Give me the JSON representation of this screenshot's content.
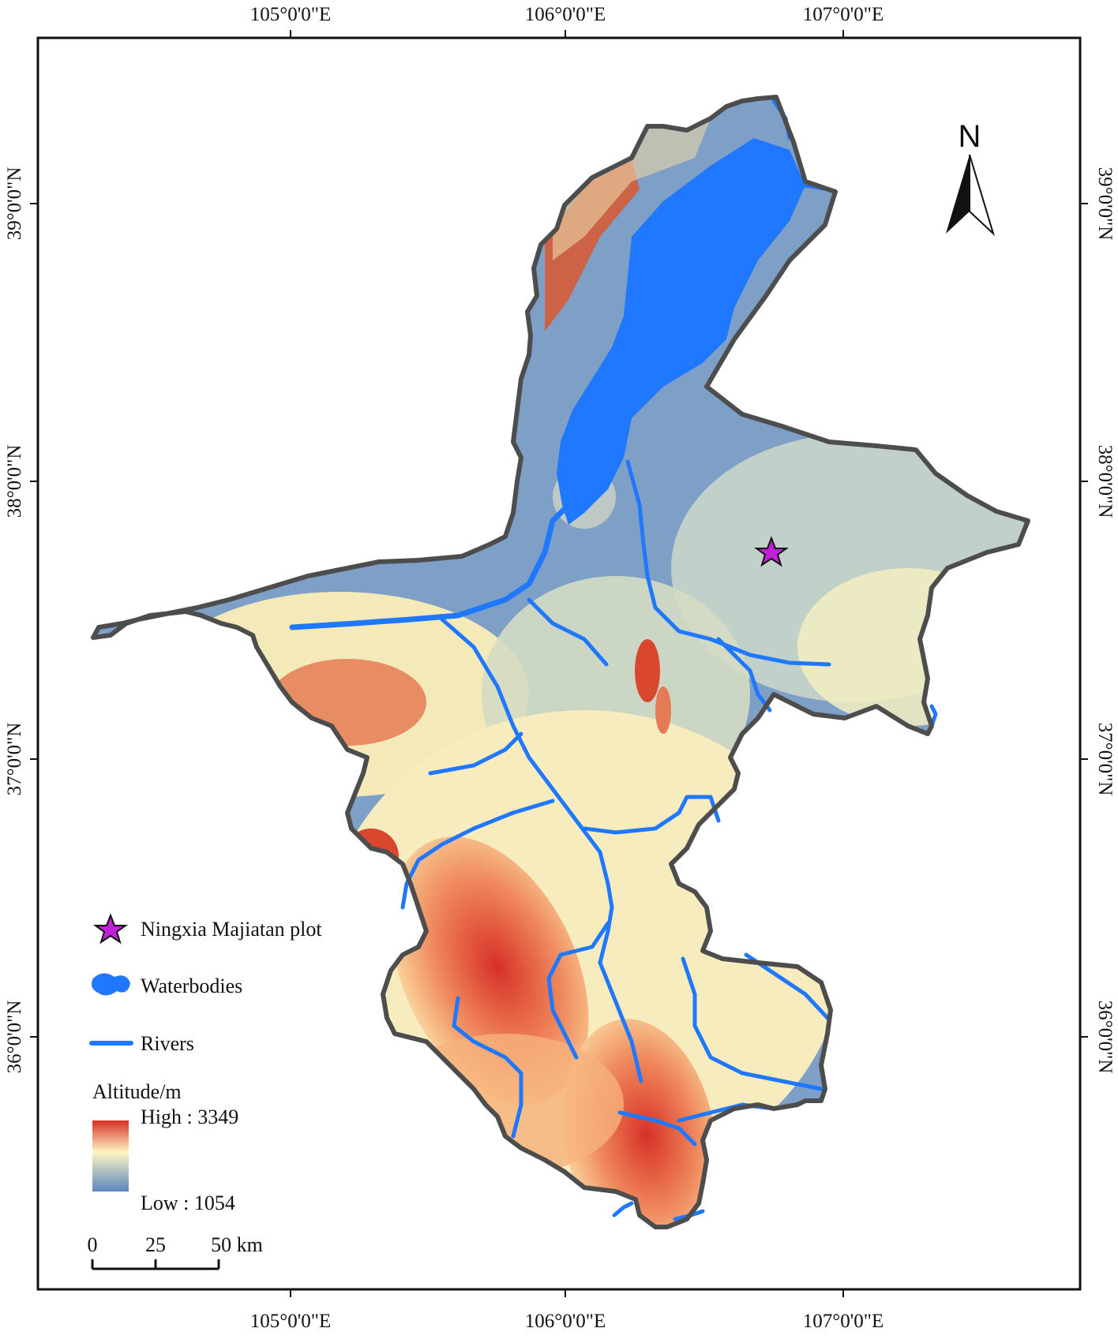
{
  "map": {
    "top_lon_labels": [
      "105°0'0\"E",
      "106°0'0\"E",
      "107°0'0\"E"
    ],
    "bottom_lon_labels": [
      "105°0'0\"E",
      "106°0'0\"E",
      "107°0'0\"E"
    ],
    "left_lat_labels": [
      "39°0'0\"N",
      "38°0'0\"N",
      "37°0'0\"N",
      "36°0'0\"N"
    ],
    "right_lat_labels": [
      "39°0'0\"N",
      "38°0'0\"N",
      "37°0'0\"N",
      "36°0'0\"N"
    ],
    "north_arrow_label": "N",
    "marker_symbol": "★"
  },
  "legend": {
    "plot_label": "Ningxia Majiatan plot",
    "waterbodies_label": "Waterbodies",
    "rivers_label": "Rivers",
    "altitude_title": "Altitude/m",
    "high_label": "High : 3349",
    "low_label": "Low : 1054"
  },
  "scale_bar": {
    "tick_labels": [
      "0",
      "25",
      "50 km"
    ]
  },
  "colors": {
    "high": "#d73027",
    "mid": "#fdf6c3",
    "low": "#5b86bd",
    "water": "#1f78ff",
    "boundary": "#4d4d4d",
    "marker": "#c21fd8"
  }
}
